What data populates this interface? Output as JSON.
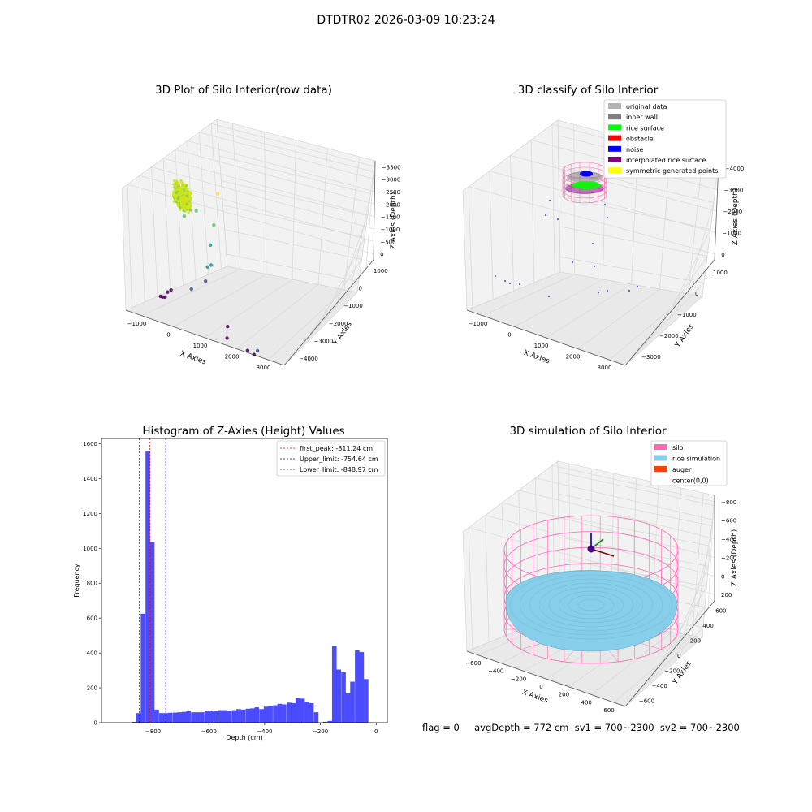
{
  "figure": {
    "suptitle": "DTDTR02 2026-03-09 10:23:24",
    "footer": "flag = 0     avgDepth = 772 cm  sv1 = 700~2300  sv2 = 700~2300"
  },
  "chart_data": [
    {
      "type": "scatter3d",
      "title": "3D Plot of Silo Interior(row data)",
      "xlabel": "X Axies",
      "ylabel": "Y Axies",
      "zlabel": "Z Axies (Depth)",
      "xticks": [
        "−1000",
        "0",
        "1000",
        "2000",
        "3000"
      ],
      "yticks": [
        "−4000",
        "−3000",
        "−2000",
        "−1000",
        "0",
        "1000"
      ],
      "zticks": [
        "0",
        "−500",
        "−1000",
        "−1500",
        "−2000",
        "−2500",
        "−3000",
        "−3500"
      ],
      "colormap": "viridis",
      "scattered_points": [
        {
          "x": -1100,
          "y": -700,
          "z": -3500
        },
        {
          "x": -1000,
          "y": -700,
          "z": -3500
        },
        {
          "x": -900,
          "y": -750,
          "z": -3450
        },
        {
          "x": -700,
          "y": -500,
          "z": -3400
        },
        {
          "x": -500,
          "y": -400,
          "z": -3350
        },
        {
          "x": 400,
          "y": -600,
          "z": -3000
        },
        {
          "x": 1600,
          "y": -2000,
          "z": -3400
        },
        {
          "x": 1800,
          "y": -1500,
          "z": -3300
        },
        {
          "x": 2400,
          "y": -2500,
          "z": -3300
        },
        {
          "x": 2600,
          "y": -2800,
          "z": -3200
        },
        {
          "x": 2800,
          "y": -2700,
          "z": -3100
        },
        {
          "x": 1000,
          "y": -800,
          "z": -2500
        },
        {
          "x": 1200,
          "y": -500,
          "z": -2200
        },
        {
          "x": 1300,
          "y": -700,
          "z": -2000
        },
        {
          "x": 1400,
          "y": -300,
          "z": -1600
        },
        {
          "x": 1600,
          "y": -200,
          "z": -1000
        },
        {
          "x": 800,
          "y": -100,
          "z": -800
        },
        {
          "x": 400,
          "y": 0,
          "z": -900
        },
        {
          "x": 300,
          "y": 100,
          "z": -1200
        },
        {
          "x": 2000,
          "y": 400,
          "z": -300
        }
      ],
      "cluster": {
        "x_range": [
          -200,
          600
        ],
        "y_range": [
          -300,
          500
        ],
        "z_range": [
          -900,
          -300
        ]
      }
    },
    {
      "type": "scatter3d",
      "title": "3D classify of Silo Interior",
      "xlabel": "X Axies",
      "ylabel": "Y Axies",
      "zlabel": "Z Axies (Depth)",
      "xticks": [
        "−1000",
        "0",
        "1000",
        "2000",
        "3000"
      ],
      "yticks": [
        "−3000",
        "−2000",
        "−1000",
        "0",
        "1000"
      ],
      "zticks": [
        "0",
        "−1000",
        "−2000",
        "−3000",
        "−4000"
      ],
      "legend_position": "top-right",
      "legend": [
        {
          "label": "original data",
          "color": "#b3b3b3"
        },
        {
          "label": "inner wall",
          "color": "#808080"
        },
        {
          "label": "rice surface",
          "color": "#00ff00"
        },
        {
          "label": "obstacle",
          "color": "#ff0000"
        },
        {
          "label": "noise",
          "color": "#0000ff"
        },
        {
          "label": "interpolated rice surface",
          "color": "#800080"
        },
        {
          "label": "symmetric generated points",
          "color": "#ffff00"
        }
      ]
    },
    {
      "type": "bar",
      "title": "Histogram of Z-Axies (Height) Values",
      "xlabel": "Depth (cm)",
      "ylabel": "Frequency",
      "xlim": [
        -985,
        40
      ],
      "ylim": [
        0,
        1630
      ],
      "xticks": [
        -800,
        -600,
        -400,
        -200,
        0
      ],
      "xtick_labels": [
        "−800",
        "−600",
        "−400",
        "−200",
        "0"
      ],
      "yticks": [
        0,
        200,
        400,
        600,
        800,
        1000,
        1200,
        1400,
        1600
      ],
      "bar_color": "#0000ff",
      "bin_width": 16.3,
      "bins": [
        {
          "x": -868,
          "v": 5
        },
        {
          "x": -852,
          "v": 55
        },
        {
          "x": -836,
          "v": 625
        },
        {
          "x": -819,
          "v": 1555
        },
        {
          "x": -803,
          "v": 1035
        },
        {
          "x": -787,
          "v": 75
        },
        {
          "x": -770,
          "v": 55
        },
        {
          "x": -754,
          "v": 55
        },
        {
          "x": -738,
          "v": 57
        },
        {
          "x": -721,
          "v": 58
        },
        {
          "x": -705,
          "v": 60
        },
        {
          "x": -689,
          "v": 62
        },
        {
          "x": -673,
          "v": 68
        },
        {
          "x": -656,
          "v": 60
        },
        {
          "x": -640,
          "v": 60
        },
        {
          "x": -624,
          "v": 60
        },
        {
          "x": -607,
          "v": 65
        },
        {
          "x": -591,
          "v": 65
        },
        {
          "x": -575,
          "v": 70
        },
        {
          "x": -558,
          "v": 72
        },
        {
          "x": -542,
          "v": 72
        },
        {
          "x": -526,
          "v": 68
        },
        {
          "x": -509,
          "v": 72
        },
        {
          "x": -493,
          "v": 78
        },
        {
          "x": -477,
          "v": 75
        },
        {
          "x": -460,
          "v": 80
        },
        {
          "x": -444,
          "v": 82
        },
        {
          "x": -428,
          "v": 88
        },
        {
          "x": -411,
          "v": 78
        },
        {
          "x": -395,
          "v": 92
        },
        {
          "x": -379,
          "v": 95
        },
        {
          "x": -362,
          "v": 100
        },
        {
          "x": -346,
          "v": 108
        },
        {
          "x": -330,
          "v": 105
        },
        {
          "x": -313,
          "v": 115
        },
        {
          "x": -297,
          "v": 112
        },
        {
          "x": -281,
          "v": 140
        },
        {
          "x": -264,
          "v": 138
        },
        {
          "x": -248,
          "v": 120
        },
        {
          "x": -232,
          "v": 112
        },
        {
          "x": -215,
          "v": 60
        },
        {
          "x": -183,
          "v": 5
        },
        {
          "x": -166,
          "v": 10
        },
        {
          "x": -150,
          "v": 440
        },
        {
          "x": -134,
          "v": 305
        },
        {
          "x": -117,
          "v": 290
        },
        {
          "x": -101,
          "v": 170
        },
        {
          "x": -85,
          "v": 235
        },
        {
          "x": -68,
          "v": 415
        },
        {
          "x": -52,
          "v": 405
        },
        {
          "x": -36,
          "v": 250
        }
      ],
      "vlines": [
        {
          "label": "first_peak: -811.24 cm",
          "x": -811.24,
          "color": "#ff0000"
        },
        {
          "label": "Upper_limit: -754.64 cm",
          "x": -754.64,
          "color": "#0000ff"
        },
        {
          "label": "Lower_limit: -848.97 cm",
          "x": -848.97,
          "color": "#0000ff"
        }
      ],
      "legend_position": "top-right"
    },
    {
      "type": "surface3d",
      "title": "3D simulation of Silo Interior",
      "xlabel": "X Axies",
      "ylabel": "Y Axies",
      "zlabel": "Z Axies (Depth)",
      "xticks": [
        "−600",
        "−400",
        "−200",
        "0",
        "200",
        "400",
        "600"
      ],
      "yticks": [
        "−600",
        "−400",
        "−200",
        "0",
        "200",
        "400",
        "600"
      ],
      "zticks": [
        "200",
        "0",
        "−200",
        "−400",
        "−600",
        "−800"
      ],
      "legend_position": "top-right",
      "legend": [
        {
          "label": "silo",
          "color": "#ff69b4"
        },
        {
          "label": "rice simulation",
          "color": "#87ceeb"
        },
        {
          "label": "auger",
          "color": "#ff4500"
        },
        {
          "label": "center(0,0)",
          "color": ""
        }
      ]
    }
  ]
}
